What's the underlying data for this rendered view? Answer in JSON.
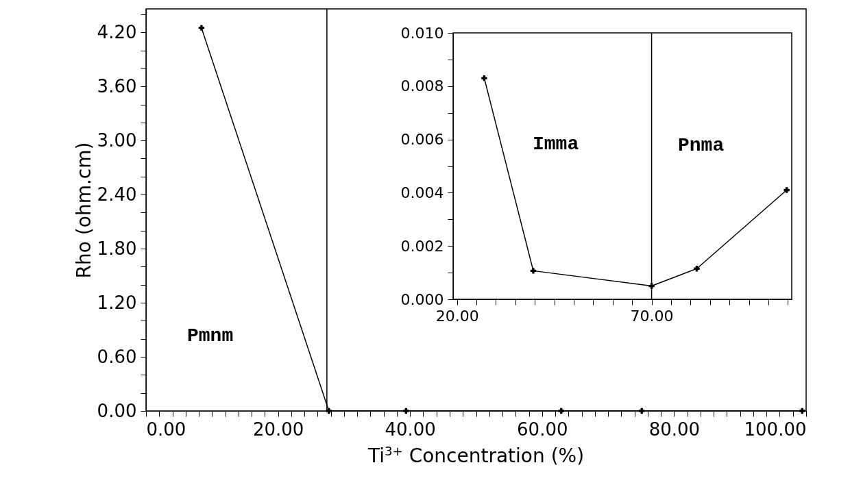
{
  "chart_data": [
    {
      "type": "line",
      "xlabel": "Ti$^{3+}$ Concentration (%)",
      "ylabel": "Rho (ohm.cm)",
      "x": [
        8.4,
        27.7,
        39.4,
        62.9,
        75.1,
        99.4
      ],
      "series": [
        {
          "color": "#000000",
          "values": [
            4.25,
            0,
            0,
            0,
            0,
            0
          ]
        }
      ],
      "xlim": [
        0,
        100
      ],
      "xticks": [
        {
          "value": 0,
          "label": "0.00"
        },
        {
          "value": 2,
          "label": null
        },
        {
          "value": 4,
          "label": null
        },
        {
          "value": 6,
          "label": null
        },
        {
          "value": 8,
          "label": null
        },
        {
          "value": 10,
          "label": null
        },
        {
          "value": 12,
          "label": null
        },
        {
          "value": 14,
          "label": null
        },
        {
          "value": 16,
          "label": null
        },
        {
          "value": 18,
          "label": null
        },
        {
          "value": 20,
          "label": "20.00"
        },
        {
          "value": 22,
          "label": null
        },
        {
          "value": 24,
          "label": null
        },
        {
          "value": 26,
          "label": null
        },
        {
          "value": 28,
          "label": null
        },
        {
          "value": 30,
          "label": null
        },
        {
          "value": 32,
          "label": null
        },
        {
          "value": 34,
          "label": null
        },
        {
          "value": 36,
          "label": null
        },
        {
          "value": 38,
          "label": null
        },
        {
          "value": 40,
          "label": "40.00"
        },
        {
          "value": 42,
          "label": null
        },
        {
          "value": 44,
          "label": null
        },
        {
          "value": 46,
          "label": null
        },
        {
          "value": 48,
          "label": null
        },
        {
          "value": 50,
          "label": null
        },
        {
          "value": 52,
          "label": null
        },
        {
          "value": 54,
          "label": null
        },
        {
          "value": 56,
          "label": null
        },
        {
          "value": 58,
          "label": null
        },
        {
          "value": 60,
          "label": "60.00"
        },
        {
          "value": 62,
          "label": null
        },
        {
          "value": 64,
          "label": null
        },
        {
          "value": 66,
          "label": null
        },
        {
          "value": 68,
          "label": null
        },
        {
          "value": 70,
          "label": null
        },
        {
          "value": 72,
          "label": null
        },
        {
          "value": 74,
          "label": null
        },
        {
          "value": 76,
          "label": null
        },
        {
          "value": 78,
          "label": null
        },
        {
          "value": 80,
          "label": "80.00"
        },
        {
          "value": 82,
          "label": null
        },
        {
          "value": 84,
          "label": null
        },
        {
          "value": 86,
          "label": null
        },
        {
          "value": 88,
          "label": null
        },
        {
          "value": 90,
          "label": null
        },
        {
          "value": 92,
          "label": null
        },
        {
          "value": 94,
          "label": null
        },
        {
          "value": 96,
          "label": null
        },
        {
          "value": 98,
          "label": null
        },
        {
          "value": 100,
          "label": "100.00"
        }
      ],
      "ylim": [
        0,
        4.46
      ],
      "yticks": [
        {
          "value": 0,
          "label": "0.00"
        },
        {
          "value": 0.2,
          "label": null
        },
        {
          "value": 0.4,
          "label": null
        },
        {
          "value": 0.6,
          "label": "0.60"
        },
        {
          "value": 0.8,
          "label": null
        },
        {
          "value": 1.0,
          "label": null
        },
        {
          "value": 1.2,
          "label": "1.20"
        },
        {
          "value": 1.4,
          "label": null
        },
        {
          "value": 1.6,
          "label": null
        },
        {
          "value": 1.8,
          "label": "1.80"
        },
        {
          "value": 2.0,
          "label": null
        },
        {
          "value": 2.2,
          "label": null
        },
        {
          "value": 2.4,
          "label": "2.40"
        },
        {
          "value": 2.6,
          "label": null
        },
        {
          "value": 2.8,
          "label": null
        },
        {
          "value": 3.0,
          "label": "3.00"
        },
        {
          "value": 3.2,
          "label": null
        },
        {
          "value": 3.4,
          "label": null
        },
        {
          "value": 3.6,
          "label": "3.60"
        },
        {
          "value": 3.8,
          "label": null
        },
        {
          "value": 4.0,
          "label": null
        },
        {
          "value": 4.2,
          "label": "4.20"
        },
        {
          "value": 4.4,
          "label": null
        }
      ],
      "ref_lines": [
        {
          "axis": "x",
          "value": 27.4
        }
      ],
      "annotations": [
        "Pmnm"
      ],
      "marker": "cross",
      "grid": false
    },
    {
      "type": "line",
      "x": [
        27.0,
        39.6,
        70,
        81.6,
        104.7
      ],
      "series": [
        {
          "color": "#000000",
          "values": [
            0.0083,
            0.00107,
            0.0005,
            0.00115,
            0.0041
          ]
        }
      ],
      "xlim": [
        19,
        106
      ],
      "xticks": [
        {
          "value": 20,
          "label": "20.00"
        },
        {
          "value": 25,
          "label": null
        },
        {
          "value": 30,
          "label": null
        },
        {
          "value": 35,
          "label": null
        },
        {
          "value": 40,
          "label": null
        },
        {
          "value": 45,
          "label": null
        },
        {
          "value": 50,
          "label": null
        },
        {
          "value": 55,
          "label": null
        },
        {
          "value": 60,
          "label": null
        },
        {
          "value": 65,
          "label": null
        },
        {
          "value": 70,
          "label": "70.00"
        },
        {
          "value": 75,
          "label": null
        },
        {
          "value": 80,
          "label": null
        },
        {
          "value": 85,
          "label": null
        },
        {
          "value": 90,
          "label": null
        },
        {
          "value": 95,
          "label": null
        },
        {
          "value": 100,
          "label": null
        },
        {
          "value": 105,
          "label": null
        }
      ],
      "ylim": [
        0,
        0.01
      ],
      "yticks": [
        {
          "value": 0,
          "label": "0.000"
        },
        {
          "value": 0.001,
          "label": null
        },
        {
          "value": 0.002,
          "label": "0.002"
        },
        {
          "value": 0.003,
          "label": null
        },
        {
          "value": 0.004,
          "label": "0.004"
        },
        {
          "value": 0.005,
          "label": null
        },
        {
          "value": 0.006,
          "label": "0.006"
        },
        {
          "value": 0.007,
          "label": null
        },
        {
          "value": 0.008,
          "label": "0.008"
        },
        {
          "value": 0.009,
          "label": null
        },
        {
          "value": 0.01,
          "label": "0.010"
        }
      ],
      "ref_lines": [
        {
          "axis": "x",
          "value": 70
        }
      ],
      "annotations": [
        "Imma",
        "Pnma"
      ],
      "marker": "cross",
      "grid": false
    }
  ]
}
